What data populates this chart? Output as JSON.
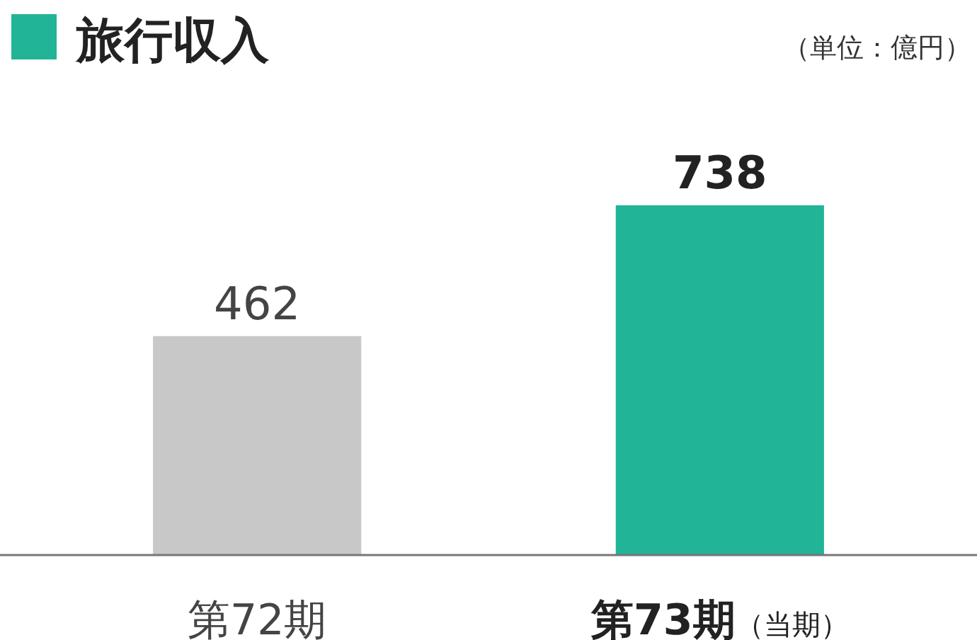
{
  "chart_data": {
    "type": "bar",
    "title": "旅行収入",
    "subtitle": "（単位：億円）",
    "categories": [
      "第72期",
      "第73期（当期）"
    ],
    "values": [
      462,
      738
    ],
    "colors": [
      "#c8c8c8",
      "#21b496"
    ],
    "data_labels": true
  }
}
